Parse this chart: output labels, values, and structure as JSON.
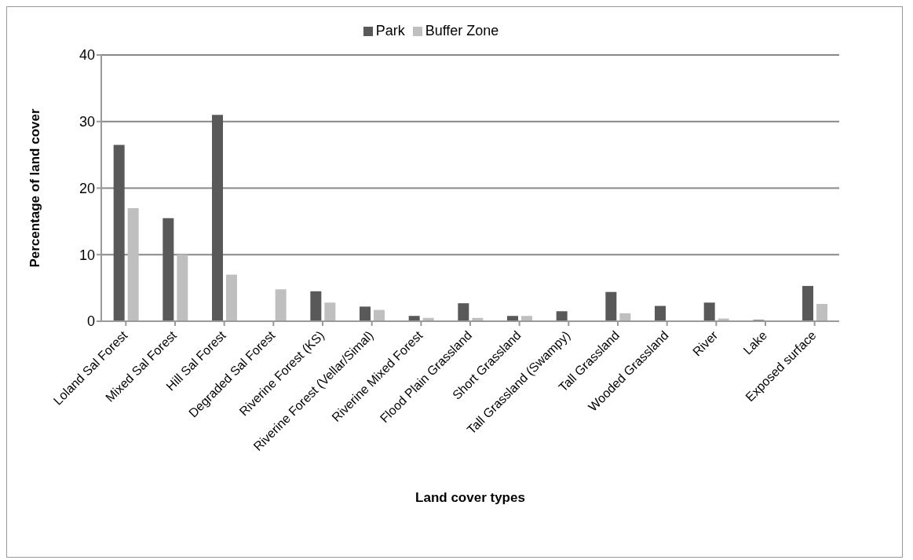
{
  "chart_data": {
    "type": "bar",
    "xlabel": "Land cover types",
    "ylabel": "Percentage of land cover",
    "categories": [
      "Loland Sal Forest",
      "Mixed Sal Forest",
      "Hill Sal Forest",
      "Degraded Sal Forest",
      "Riverine Forest (KS)",
      "Riverine Forest (Vellar/Simal)",
      "Riverine Mixed Forest",
      "Flood Plain Grassland",
      "Short Grassland",
      "Tall Grassland (Swampy)",
      "Tall Grassland",
      "Wooded Grassland",
      "River",
      "Lake",
      "Exposed surface"
    ],
    "series": [
      {
        "name": "Park",
        "color": "#595959",
        "values": [
          26.5,
          15.5,
          31,
          0.1,
          4.5,
          2.2,
          0.8,
          2.7,
          0.8,
          1.5,
          4.4,
          2.3,
          2.8,
          0.2,
          5.3
        ]
      },
      {
        "name": "Buffer Zone",
        "color": "#bfbfbf",
        "values": [
          17,
          10,
          7,
          4.8,
          2.8,
          1.7,
          0.5,
          0.5,
          0.8,
          0.1,
          1.2,
          0.1,
          0.4,
          0.1,
          2.6
        ]
      }
    ],
    "ylim": [
      0,
      40
    ],
    "yticks": [
      0,
      10,
      20,
      30,
      40
    ],
    "grid": "y",
    "legend": "top"
  }
}
